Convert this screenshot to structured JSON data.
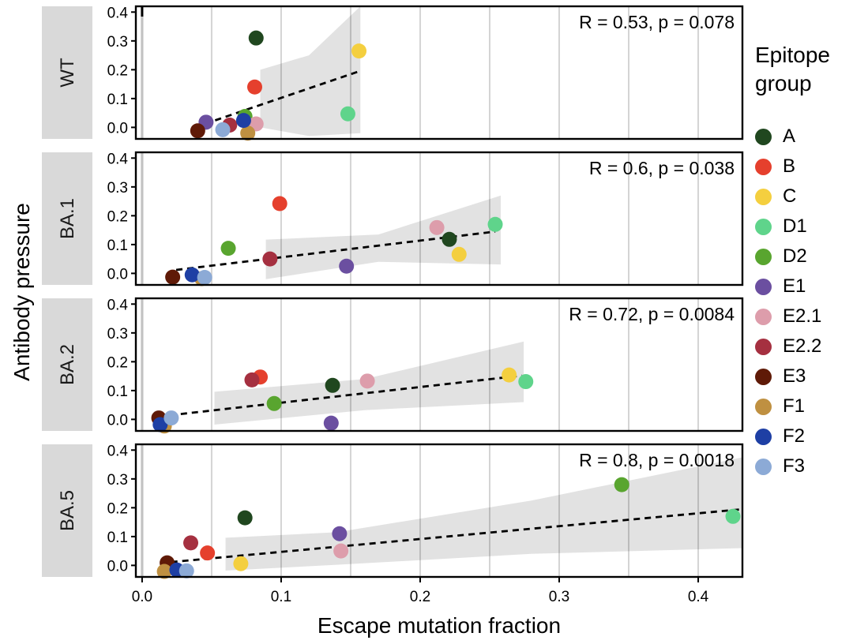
{
  "chart_data": {
    "type": "scatter",
    "title": "",
    "xlabel": "Escape mutation fraction",
    "ylabel": "Antibody pressure",
    "xlim": [
      -0.0045,
      0.4318
    ],
    "ylim": [
      -0.04,
      0.42
    ],
    "x_ticks": [
      0.0,
      0.1,
      0.2,
      0.3,
      0.4
    ],
    "x_minor_ticks": [
      0.05,
      0.15,
      0.25,
      0.35
    ],
    "x_tick_labels": [
      "0.0",
      "0.1",
      "0.2",
      "0.3",
      "0.4"
    ],
    "y_ticks": [
      0.0,
      0.1,
      0.2,
      0.3,
      0.4
    ],
    "y_tick_labels": [
      "0.0",
      "0.1",
      "0.2",
      "0.3",
      "0.4"
    ],
    "grid": "vertical-only",
    "legend_position": "right",
    "trend_style": "dashed-lm-with-gray-ci-band",
    "facets": [
      {
        "label": "WT",
        "annotation": "R = 0.53, p = 0.078",
        "R": 0.53,
        "p": 0.078,
        "regression": {
          "x1": 0.045,
          "y1": 0.012,
          "x2": 0.157,
          "y2": 0.196
        },
        "band": {
          "x": [
            0.085,
            0.12,
            0.157
          ],
          "top": [
            0.2,
            0.25,
            0.42
          ],
          "bottom": [
            0.0,
            -0.03,
            -0.02
          ]
        },
        "points": [
          {
            "group": "A",
            "x": 0.082,
            "y": 0.31
          },
          {
            "group": "B",
            "x": 0.081,
            "y": 0.14
          },
          {
            "group": "C",
            "x": 0.156,
            "y": 0.265
          },
          {
            "group": "D1",
            "x": 0.148,
            "y": 0.047
          },
          {
            "group": "D2",
            "x": 0.074,
            "y": 0.038
          },
          {
            "group": "E1",
            "x": 0.046,
            "y": 0.018
          },
          {
            "group": "E2.1",
            "x": 0.082,
            "y": 0.012
          },
          {
            "group": "E2.2",
            "x": 0.063,
            "y": 0.008
          },
          {
            "group": "E3",
            "x": 0.04,
            "y": -0.012
          },
          {
            "group": "F1",
            "x": 0.076,
            "y": -0.02
          },
          {
            "group": "F2",
            "x": 0.073,
            "y": 0.024
          },
          {
            "group": "F3",
            "x": 0.058,
            "y": -0.008
          }
        ]
      },
      {
        "label": "BA.1",
        "annotation": "R = 0.6, p = 0.038",
        "R": 0.6,
        "p": 0.038,
        "regression": {
          "x1": 0.0245,
          "y1": 0.012,
          "x2": 0.254,
          "y2": 0.145
        },
        "band": {
          "x": [
            0.089,
            0.17,
            0.258
          ],
          "top": [
            0.117,
            0.135,
            0.27
          ],
          "bottom": [
            -0.02,
            0.04,
            0.031
          ]
        },
        "points": [
          {
            "group": "A",
            "x": 0.221,
            "y": 0.118
          },
          {
            "group": "B",
            "x": 0.099,
            "y": 0.242
          },
          {
            "group": "C",
            "x": 0.228,
            "y": 0.066
          },
          {
            "group": "D1",
            "x": 0.254,
            "y": 0.17
          },
          {
            "group": "D2",
            "x": 0.062,
            "y": 0.087
          },
          {
            "group": "E1",
            "x": 0.147,
            "y": 0.025
          },
          {
            "group": "E2.1",
            "x": 0.212,
            "y": 0.159
          },
          {
            "group": "E2.2",
            "x": 0.092,
            "y": 0.05
          },
          {
            "group": "E3",
            "x": 0.022,
            "y": -0.013
          },
          {
            "group": "F1",
            "x": 0.043,
            "y": -0.018
          },
          {
            "group": "F2",
            "x": 0.036,
            "y": -0.005
          },
          {
            "group": "F3",
            "x": 0.045,
            "y": -0.014
          }
        ]
      },
      {
        "label": "BA.2",
        "annotation": "R = 0.72, p = 0.0084",
        "R": 0.72,
        "p": 0.0084,
        "regression": {
          "x1": 0.012,
          "y1": 0.01,
          "x2": 0.273,
          "y2": 0.152
        },
        "band": {
          "x": [
            0.052,
            0.16,
            0.2745
          ],
          "top": [
            0.096,
            0.14,
            0.27
          ],
          "bottom": [
            -0.018,
            0.032,
            0.06
          ]
        },
        "points": [
          {
            "group": "A",
            "x": 0.137,
            "y": 0.118
          },
          {
            "group": "B",
            "x": 0.085,
            "y": 0.147
          },
          {
            "group": "C",
            "x": 0.264,
            "y": 0.154
          },
          {
            "group": "D1",
            "x": 0.276,
            "y": 0.131
          },
          {
            "group": "D2",
            "x": 0.095,
            "y": 0.055
          },
          {
            "group": "E1",
            "x": 0.136,
            "y": -0.013
          },
          {
            "group": "E2.1",
            "x": 0.162,
            "y": 0.133
          },
          {
            "group": "E2.2",
            "x": 0.079,
            "y": 0.137
          },
          {
            "group": "E3",
            "x": 0.012,
            "y": 0.005
          },
          {
            "group": "F1",
            "x": 0.016,
            "y": -0.023
          },
          {
            "group": "F2",
            "x": 0.013,
            "y": -0.018
          },
          {
            "group": "F3",
            "x": 0.021,
            "y": 0.005
          }
        ]
      },
      {
        "label": "BA.5",
        "annotation": "R = 0.8, p = 0.0018",
        "R": 0.8,
        "p": 0.0018,
        "regression": {
          "x1": 0.013,
          "y1": 0.008,
          "x2": 0.432,
          "y2": 0.195
        },
        "band": {
          "x": [
            0.06,
            0.14,
            0.28,
            0.432
          ],
          "top": [
            0.096,
            0.115,
            0.225,
            0.375
          ],
          "bottom": [
            -0.018,
            0.002,
            0.04,
            0.06
          ]
        },
        "points": [
          {
            "group": "A",
            "x": 0.074,
            "y": 0.165
          },
          {
            "group": "B",
            "x": 0.047,
            "y": 0.043
          },
          {
            "group": "C",
            "x": 0.071,
            "y": 0.006
          },
          {
            "group": "D1",
            "x": 0.425,
            "y": 0.17
          },
          {
            "group": "D2",
            "x": 0.345,
            "y": 0.28
          },
          {
            "group": "E1",
            "x": 0.142,
            "y": 0.11
          },
          {
            "group": "E2.1",
            "x": 0.143,
            "y": 0.05
          },
          {
            "group": "E2.2",
            "x": 0.035,
            "y": 0.078
          },
          {
            "group": "E3",
            "x": 0.018,
            "y": 0.009
          },
          {
            "group": "F1",
            "x": 0.016,
            "y": -0.021
          },
          {
            "group": "F2",
            "x": 0.025,
            "y": -0.016
          },
          {
            "group": "F3",
            "x": 0.032,
            "y": -0.019
          }
        ]
      }
    ],
    "group_colors": {
      "A": "#20471f",
      "B": "#e5402d",
      "C": "#f4cf3f",
      "D1": "#5fd48b",
      "D2": "#59a52f",
      "E1": "#6b4fa0",
      "E2.1": "#dd9dab",
      "E2.2": "#a53040",
      "E3": "#5f1a07",
      "F1": "#bf9041",
      "F2": "#1e3fa4",
      "F3": "#8caad6"
    }
  },
  "legend": {
    "title_lines": [
      "Epitope",
      "group"
    ],
    "items": [
      {
        "label": "A",
        "color": "#20471f"
      },
      {
        "label": "B",
        "color": "#e5402d"
      },
      {
        "label": "C",
        "color": "#f4cf3f"
      },
      {
        "label": "D1",
        "color": "#5fd48b"
      },
      {
        "label": "D2",
        "color": "#59a52f"
      },
      {
        "label": "E1",
        "color": "#6b4fa0"
      },
      {
        "label": "E2.1",
        "color": "#dd9dab"
      },
      {
        "label": "E2.2",
        "color": "#a53040"
      },
      {
        "label": "E3",
        "color": "#5f1a07"
      },
      {
        "label": "F1",
        "color": "#bf9041"
      },
      {
        "label": "F2",
        "color": "#1e3fa4"
      },
      {
        "label": "F3",
        "color": "#8caad6"
      }
    ]
  },
  "style": {
    "strip_bg": "#d9d9d9",
    "grid_color": "#d4d4d4",
    "grid_zero_color": "#c2c2c2",
    "band_fill": "rgba(0,0,0,0.115)",
    "panel_border": "#000000"
  }
}
